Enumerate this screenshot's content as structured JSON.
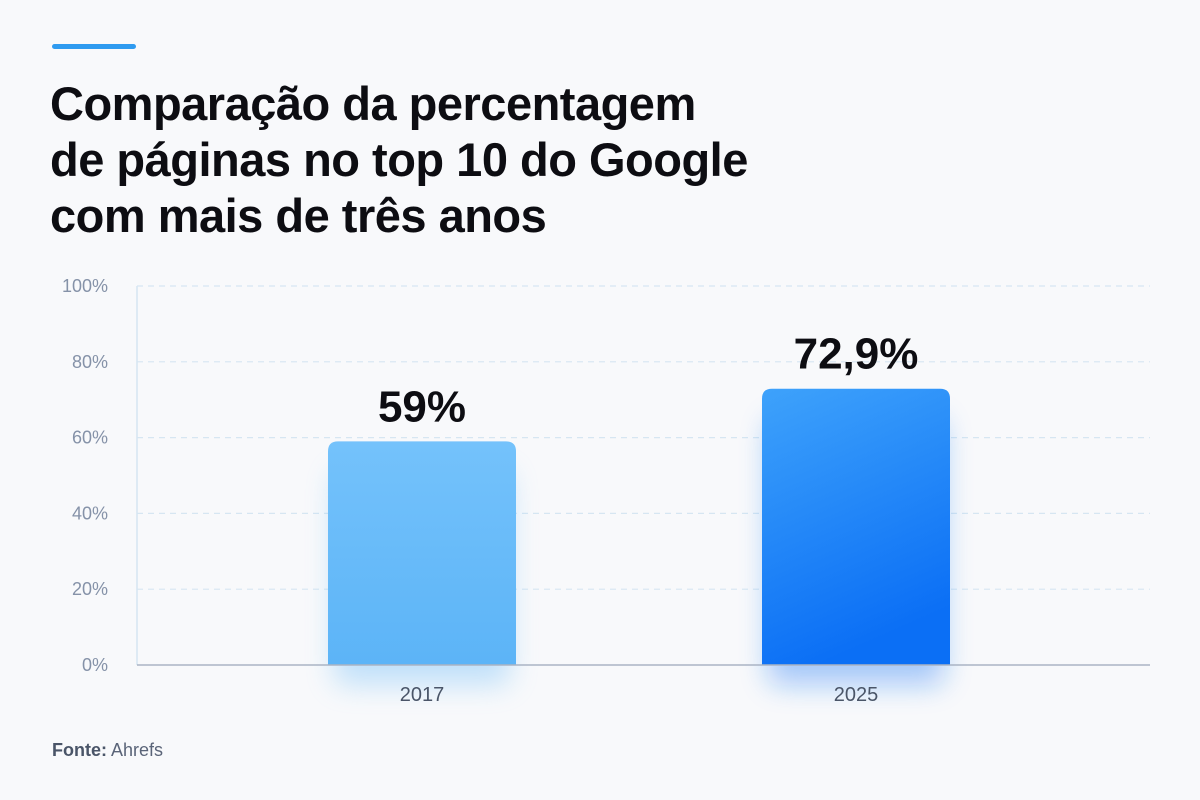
{
  "header": {
    "title_lines": [
      "Comparação da percentagem",
      "de páginas no top 10 do Google",
      "com mais de três anos"
    ],
    "accent_color": "#2f9bf0"
  },
  "footer": {
    "source_label": "Fonte:",
    "source_value": "Ahrefs"
  },
  "chart_data": {
    "type": "bar",
    "categories": [
      "2017",
      "2025"
    ],
    "values": [
      59,
      72.9
    ],
    "value_labels": [
      "59%",
      "72,9%"
    ],
    "ylim": [
      0,
      100
    ],
    "yticks": [
      0,
      20,
      40,
      60,
      80,
      100
    ],
    "ytick_labels": [
      "0%",
      "20%",
      "40%",
      "60%",
      "80%",
      "100%"
    ],
    "grid": "horizontal dashed",
    "colors": {
      "bar_2017_top": "#74c2fb",
      "bar_2017_bottom": "#5cb4f7",
      "bar_2025_top": "#3ea2fb",
      "bar_2025_bottom": "#0b6ff5",
      "grid": "#d6e6f2",
      "axis": "#aab4c4",
      "tick_text": "#8592a8",
      "category_text": "#4a5568",
      "value_text": "#0d0d12"
    }
  }
}
